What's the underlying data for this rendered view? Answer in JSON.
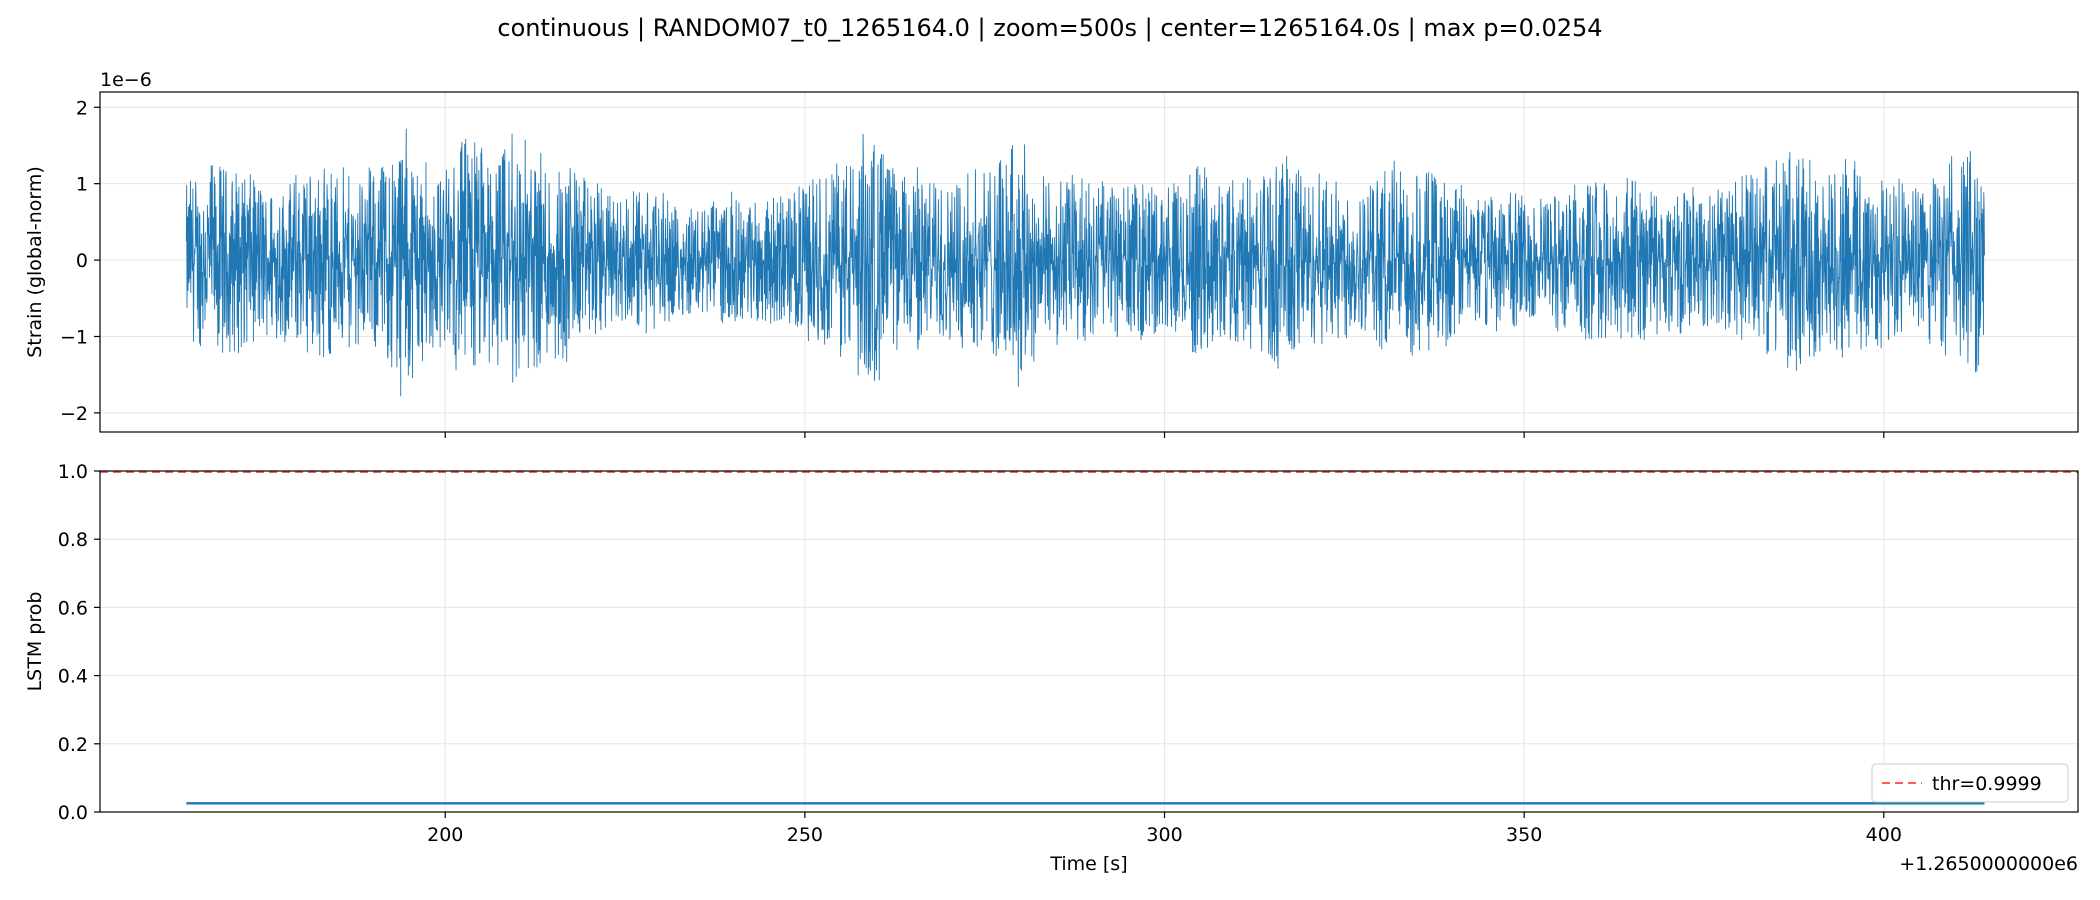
{
  "chart_data": {
    "title": "continuous | RANDOM07_t0_1265164.0 | zoom=500s | center=1265164.0s | max p=0.0254",
    "type": "line",
    "shared_x": {
      "label": "Time [s]",
      "offset_label": "+1.2650000000e6",
      "xlim": [
        152,
        427
      ],
      "ticks": [
        200,
        250,
        300,
        350,
        400
      ],
      "tick_labels": [
        "200",
        "250",
        "300",
        "350",
        "400"
      ]
    },
    "panels": [
      {
        "id": "strain",
        "ylabel": "Strain (global-norm)",
        "scale_label": "1e−6",
        "ylim": [
          -2.25,
          2.2
        ],
        "yticks": [
          -2,
          -1,
          0,
          1,
          2
        ],
        "ytick_labels": [
          "−2",
          "−1",
          "0",
          "1",
          "2"
        ],
        "grid": true,
        "series": [
          {
            "color": "#1f77b4",
            "x_range": [
              164.0,
              414.0
            ],
            "envelope_x": [
              164,
              168,
              172,
              176,
              180,
              184,
              188,
              192,
              194,
              196,
              198,
              200,
              204,
              206,
              208,
              210,
              212,
              216,
              220,
              224,
              228,
              232,
              236,
              240,
              244,
              248,
              252,
              256,
              258,
              260,
              262,
              264,
              266,
              268,
              272,
              276,
              280,
              284,
              288,
              292,
              296,
              300,
              304,
              308,
              312,
              316,
              318,
              320,
              324,
              328,
              332,
              336,
              340,
              344,
              348,
              352,
              356,
              360,
              364,
              368,
              372,
              376,
              380,
              384,
              388,
              392,
              396,
              398,
              400,
              404,
              408,
              412,
              414
            ],
            "envelope_upper": [
              1.05,
              1.4,
              1.2,
              1.0,
              1.2,
              1.3,
              1.1,
              1.4,
              1.9,
              1.5,
              1.2,
              1.2,
              1.8,
              1.4,
              1.5,
              1.95,
              1.5,
              1.4,
              1.2,
              0.9,
              1.0,
              0.8,
              0.7,
              0.9,
              0.8,
              0.9,
              1.1,
              1.4,
              1.7,
              1.75,
              1.4,
              1.2,
              1.3,
              1.1,
              1.2,
              1.3,
              1.75,
              1.1,
              1.2,
              1.0,
              1.1,
              1.0,
              1.3,
              1.1,
              1.2,
              1.4,
              1.45,
              1.2,
              1.1,
              1.0,
              1.4,
              1.3,
              1.1,
              0.9,
              1.0,
              0.8,
              1.0,
              1.1,
              1.2,
              1.0,
              1.0,
              0.9,
              1.1,
              1.3,
              1.5,
              1.2,
              1.5,
              1.3,
              1.2,
              1.0,
              1.3,
              1.6,
              1.4
            ],
            "envelope_lower": [
              -1.1,
              -1.4,
              -1.3,
              -1.1,
              -1.3,
              -1.4,
              -1.2,
              -1.5,
              -2.05,
              -1.6,
              -1.3,
              -1.3,
              -1.9,
              -1.5,
              -1.6,
              -1.9,
              -1.5,
              -1.4,
              -1.2,
              -0.9,
              -1.0,
              -0.8,
              -0.8,
              -0.9,
              -0.9,
              -1.0,
              -1.2,
              -1.5,
              -1.7,
              -1.7,
              -1.4,
              -1.2,
              -1.3,
              -1.1,
              -1.2,
              -1.3,
              -1.75,
              -1.1,
              -1.2,
              -1.0,
              -1.1,
              -1.0,
              -1.3,
              -1.1,
              -1.2,
              -1.5,
              -1.65,
              -1.2,
              -1.1,
              -1.0,
              -1.4,
              -1.3,
              -1.1,
              -0.9,
              -1.0,
              -0.8,
              -1.0,
              -1.1,
              -1.2,
              -1.0,
              -1.0,
              -0.9,
              -1.1,
              -1.3,
              -1.5,
              -1.2,
              -1.5,
              -1.4,
              -1.2,
              -1.0,
              -1.3,
              -1.6,
              -1.6
            ]
          }
        ]
      },
      {
        "id": "prob",
        "ylabel": "LSTM prob",
        "ylim": [
          0.0,
          1.0
        ],
        "yticks": [
          0.0,
          0.2,
          0.4,
          0.6,
          0.8,
          1.0
        ],
        "ytick_labels": [
          "0.0",
          "0.2",
          "0.4",
          "0.6",
          "0.8",
          "1.0"
        ],
        "grid": true,
        "series": [
          {
            "color": "#1f77b4",
            "x": [
              164,
              414
            ],
            "y": [
              0.0254,
              0.0254
            ]
          }
        ],
        "threshold": {
          "value": 0.9999,
          "color": "#ff5a5a",
          "style": "dashed",
          "legend_label": "thr=0.9999"
        },
        "legend_position": "lower-right"
      }
    ]
  }
}
